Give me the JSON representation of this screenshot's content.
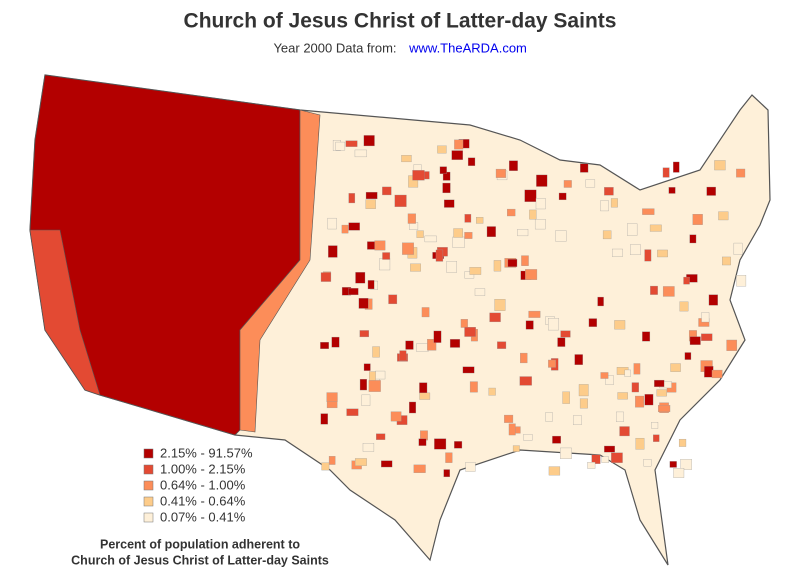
{
  "header": {
    "title": "Church of Jesus Christ of Latter-day Saints",
    "subtitle": "Year 2000 Data from:",
    "source_link": "www.TheARDA.com"
  },
  "legend": {
    "items": [
      {
        "label": "2.15% - 91.57%",
        "color": "#b30000"
      },
      {
        "label": "1.00% - 2.15%",
        "color": "#e34a33"
      },
      {
        "label": "0.64% - 1.00%",
        "color": "#fc8d59"
      },
      {
        "label": "0.41% - 0.64%",
        "color": "#fdcc8a"
      },
      {
        "label": "0.07% - 0.41%",
        "color": "#fef0d9"
      }
    ],
    "title": [
      "Percent of population adherent to",
      "Church of Jesus Christ of Latter-day Saints"
    ]
  }
}
